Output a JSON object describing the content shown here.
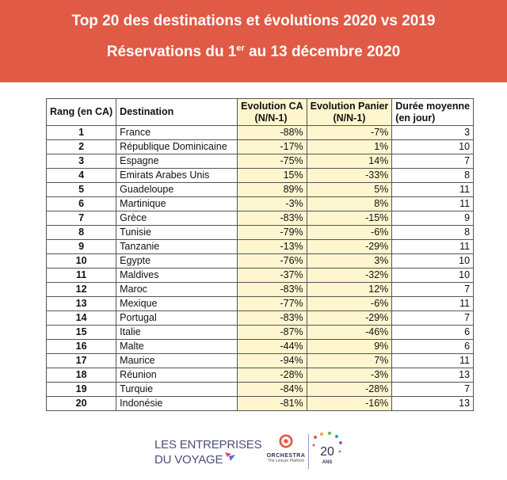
{
  "header": {
    "title": "Top 20 des destinations et évolutions 2020 vs 2019",
    "subtitle_before": "Réservations du 1",
    "subtitle_sup": "er",
    "subtitle_after": " au 13 décembre 2020"
  },
  "table": {
    "headers": {
      "rank": "Rang (en CA)",
      "destination": "Destination",
      "ca_line1": "Evolution CA",
      "ca_line2": "(N/N-1)",
      "panier_line1": "Evolution Panier",
      "panier_line2": "(N/N-1)",
      "duree_line1": "Durée moyenne",
      "duree_line2": "(en jour)"
    },
    "rows": [
      {
        "rank": "1",
        "destination": "France",
        "ca": "-88%",
        "panier": "-7%",
        "duree": "3"
      },
      {
        "rank": "2",
        "destination": "République Dominicaine",
        "ca": "-17%",
        "panier": "1%",
        "duree": "10"
      },
      {
        "rank": "3",
        "destination": "Espagne",
        "ca": "-75%",
        "panier": "14%",
        "duree": "7"
      },
      {
        "rank": "4",
        "destination": "Emirats Arabes Unis",
        "ca": "15%",
        "panier": "-33%",
        "duree": "8"
      },
      {
        "rank": "5",
        "destination": "Guadeloupe",
        "ca": "89%",
        "panier": "5%",
        "duree": "11"
      },
      {
        "rank": "6",
        "destination": "Martinique",
        "ca": "-3%",
        "panier": "8%",
        "duree": "11"
      },
      {
        "rank": "7",
        "destination": "Grèce",
        "ca": "-83%",
        "panier": "-15%",
        "duree": "9"
      },
      {
        "rank": "8",
        "destination": "Tunisie",
        "ca": "-79%",
        "panier": "-6%",
        "duree": "8"
      },
      {
        "rank": "9",
        "destination": "Tanzanie",
        "ca": "-13%",
        "panier": "-29%",
        "duree": "11"
      },
      {
        "rank": "10",
        "destination": "Egypte",
        "ca": "-76%",
        "panier": "3%",
        "duree": "10"
      },
      {
        "rank": "11",
        "destination": "Maldives",
        "ca": "-37%",
        "panier": "-32%",
        "duree": "10"
      },
      {
        "rank": "12",
        "destination": "Maroc",
        "ca": "-83%",
        "panier": "12%",
        "duree": "7"
      },
      {
        "rank": "13",
        "destination": "Mexique",
        "ca": "-77%",
        "panier": "-6%",
        "duree": "11"
      },
      {
        "rank": "14",
        "destination": "Portugal",
        "ca": "-83%",
        "panier": "-29%",
        "duree": "7"
      },
      {
        "rank": "15",
        "destination": "Italie",
        "ca": "-87%",
        "panier": "-46%",
        "duree": "6"
      },
      {
        "rank": "16",
        "destination": "Malte",
        "ca": "-44%",
        "panier": "9%",
        "duree": "6"
      },
      {
        "rank": "17",
        "destination": "Maurice",
        "ca": "-94%",
        "panier": "7%",
        "duree": "11"
      },
      {
        "rank": "18",
        "destination": "Réunion",
        "ca": "-28%",
        "panier": "-3%",
        "duree": "13"
      },
      {
        "rank": "19",
        "destination": "Turquie",
        "ca": "-84%",
        "panier": "-28%",
        "duree": "7"
      },
      {
        "rank": "20",
        "destination": "Indonésie",
        "ca": "-81%",
        "panier": "-16%",
        "duree": "13"
      }
    ]
  },
  "footer": {
    "logo_line1": "LES ENTREPRISES",
    "logo_line2": "DU VOYAGE",
    "orchestra_name": "ORCHESTRA",
    "orchestra_tagline": "The Leisure Platform",
    "anniversary_number": "20",
    "anniversary_unit": "ANS"
  },
  "colors": {
    "banner": "#e05a45",
    "highlight_cells": "#fff6cf",
    "logo_text": "#4a4f7a"
  }
}
